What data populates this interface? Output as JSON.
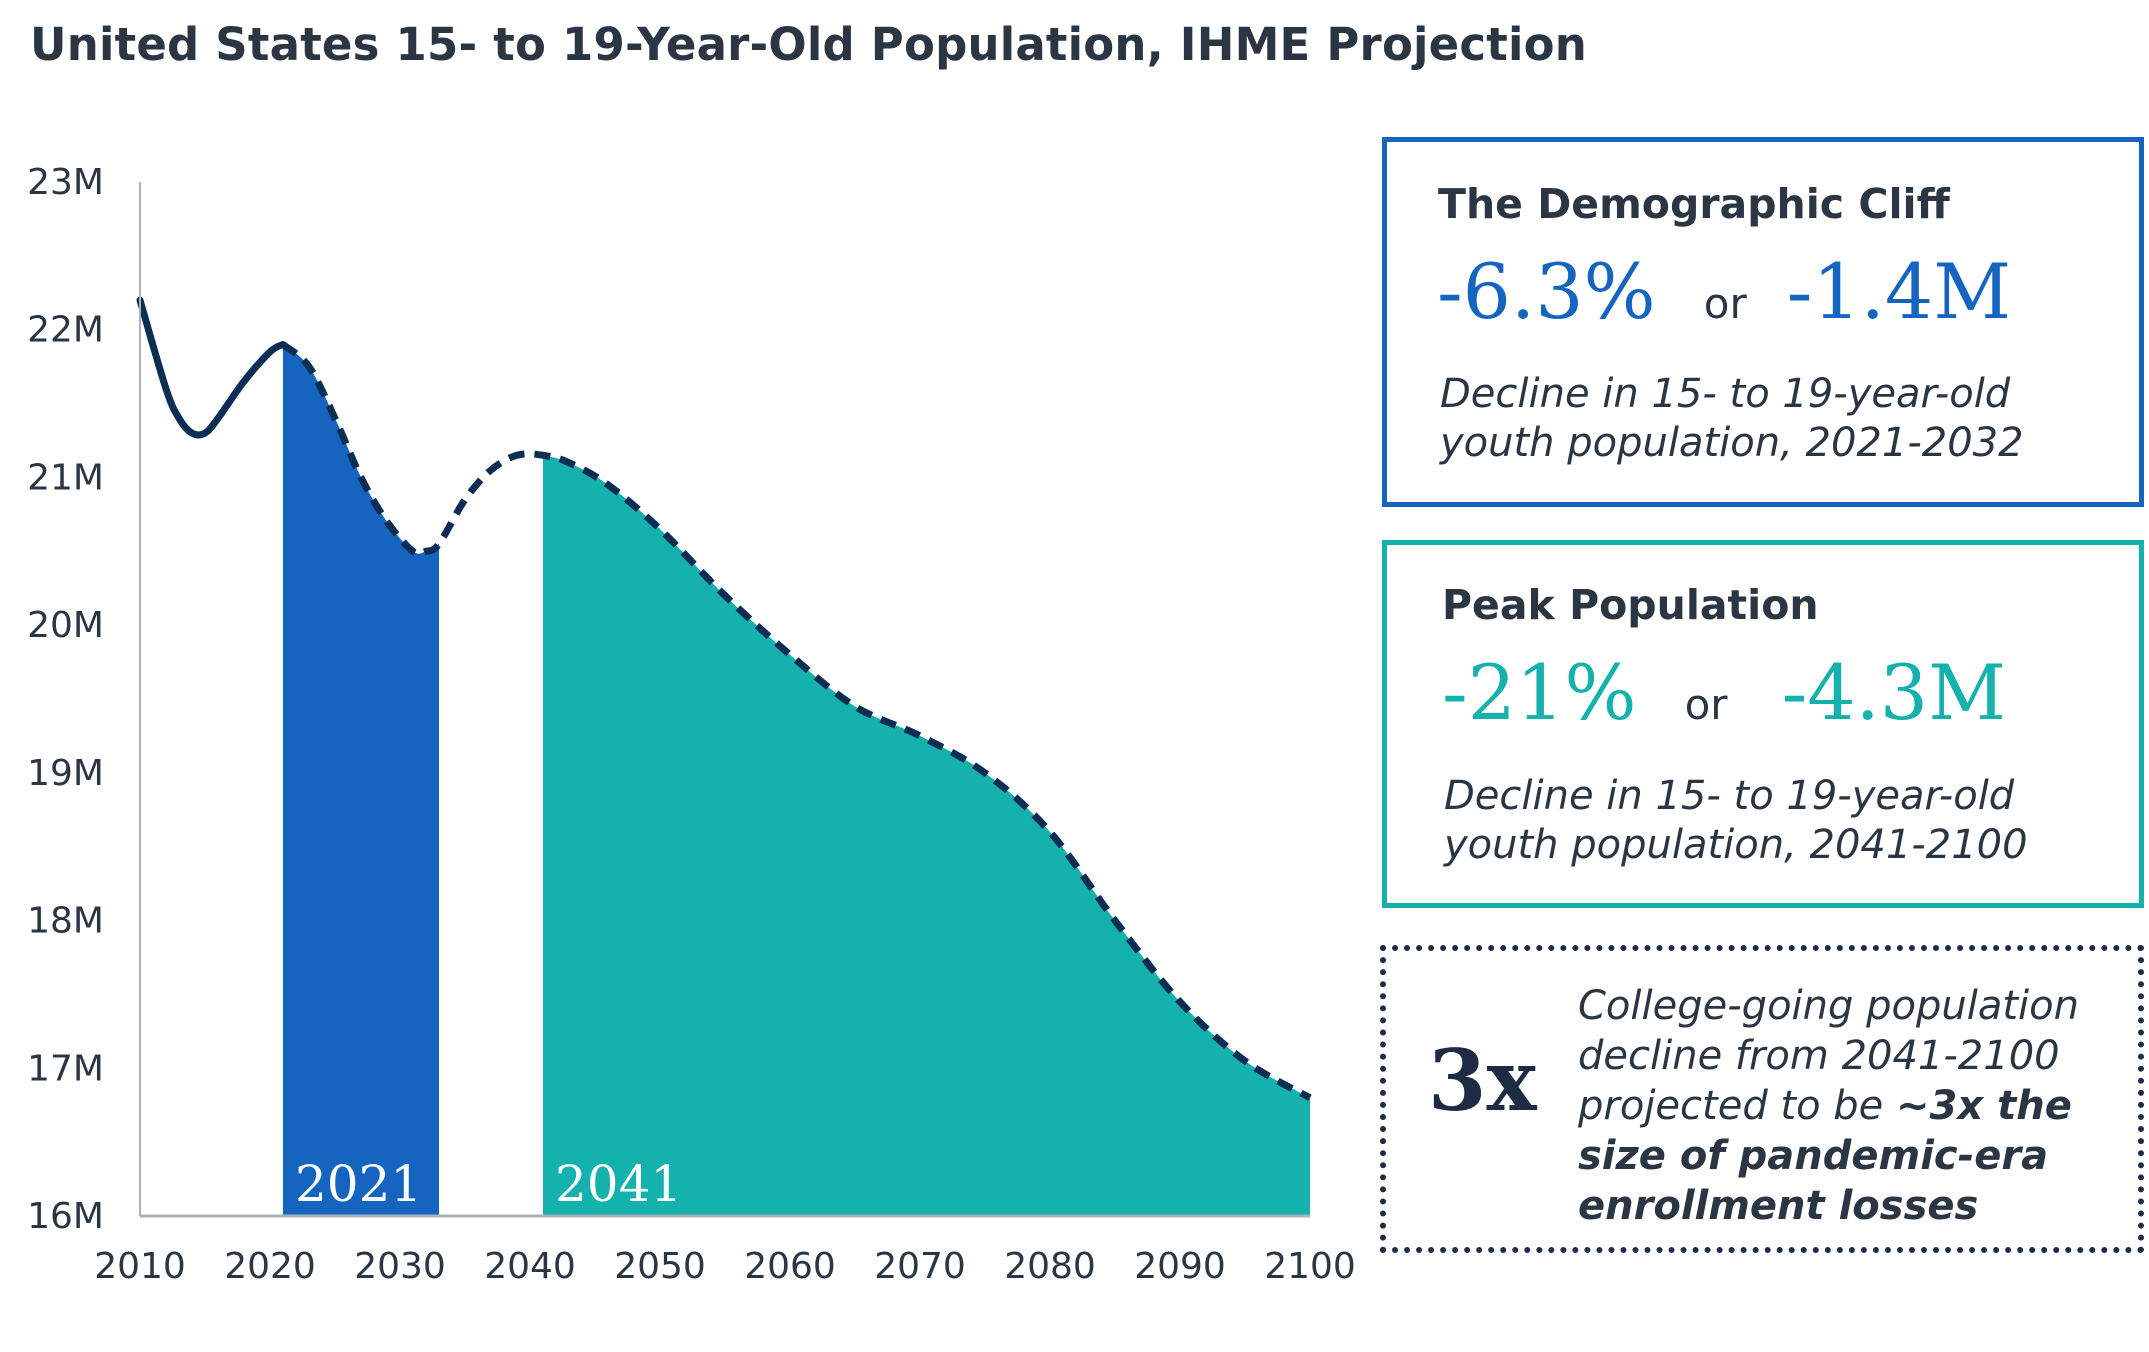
{
  "title": "United States 15- to 19-Year-Old Population, IHME Projection",
  "chart_data": {
    "type": "line",
    "title": "United States 15- to 19-Year-Old Population, IHME Projection",
    "xlabel": "",
    "ylabel": "",
    "xlim": [
      2010,
      2100
    ],
    "ylim": [
      16,
      23
    ],
    "x_ticks": [
      "2010",
      "2020",
      "2030",
      "2040",
      "2050",
      "2060",
      "2070",
      "2080",
      "2090",
      "2100"
    ],
    "y_ticks": [
      "16M",
      "17M",
      "18M",
      "19M",
      "20M",
      "21M",
      "22M",
      "23M"
    ],
    "grid": false,
    "series": [
      {
        "segment": "historical",
        "style": "solid",
        "color": "#0d2d55",
        "x": [
          2010,
          2012,
          2013,
          2014,
          2015,
          2016,
          2018,
          2020,
          2021
        ],
        "y": [
          22.2,
          21.6,
          21.4,
          21.3,
          21.3,
          21.4,
          21.65,
          21.85,
          21.9
        ]
      },
      {
        "segment": "projection",
        "style": "dashed",
        "color": "#0d2d55",
        "x": [
          2021,
          2023,
          2025,
          2027,
          2029,
          2031,
          2032,
          2033,
          2035,
          2037,
          2039,
          2041,
          2043,
          2046,
          2050,
          2055,
          2060,
          2065,
          2070,
          2075,
          2080,
          2085,
          2090,
          2095,
          2100
        ],
        "y": [
          21.9,
          21.75,
          21.4,
          21.0,
          20.7,
          20.5,
          20.5,
          20.55,
          20.85,
          21.05,
          21.15,
          21.15,
          21.1,
          20.95,
          20.65,
          20.2,
          19.8,
          19.45,
          19.25,
          19.0,
          18.6,
          18.0,
          17.45,
          17.05,
          16.8
        ]
      }
    ],
    "highlighted_ranges": [
      {
        "label": "2021",
        "from": 2021,
        "to": 2033,
        "color": "#1565c0"
      },
      {
        "label": "2041",
        "from": 2041,
        "to": 2100,
        "color": "#14b1ad"
      }
    ]
  },
  "cards": {
    "cliff": {
      "heading": "The Demographic Cliff",
      "pct": "-6.3%",
      "or": "or",
      "abs": "-1.4M",
      "desc_line1": "Decline in 15- to 19-year-old",
      "desc_line2": "youth population, 2021-2032"
    },
    "peak": {
      "heading": "Peak Population",
      "pct": "-21%",
      "or": "or",
      "abs": "-4.3M",
      "desc_line1": "Decline in 15- to 19-year-old",
      "desc_line2": "youth population, 2041-2100"
    },
    "note": {
      "big": "3x",
      "text_plain": "College-going population decline from 2041-2100 projected to be",
      "text_bold": "~3x the size of pandemic-era enrollment losses"
    }
  },
  "colors": {
    "text": "#2b3644",
    "line": "#0d2d55",
    "blue": "#1565c0",
    "teal": "#14b1ad",
    "axis": "#aab2bb"
  }
}
